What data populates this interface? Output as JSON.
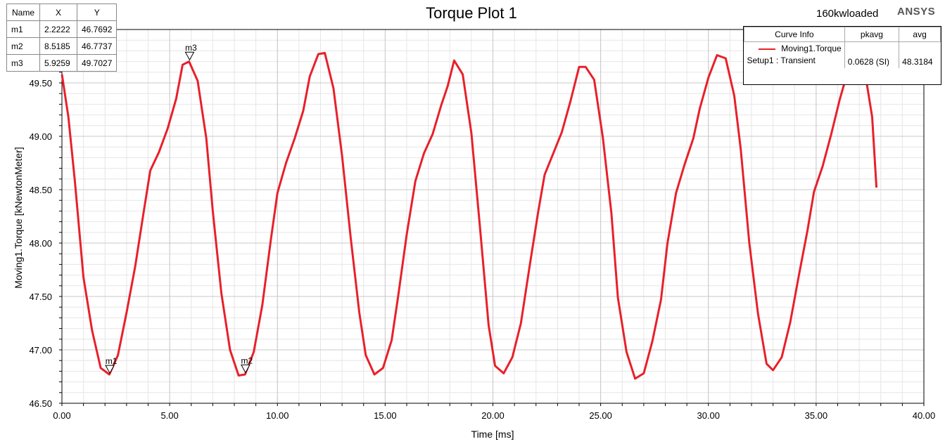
{
  "header": {
    "title": "Torque Plot 1",
    "subtitle": "160kwloaded",
    "brand": "ANSYS"
  },
  "marker_table": {
    "columns": [
      "Name",
      "X",
      "Y"
    ],
    "rows": [
      {
        "name": "m1",
        "x": "2.2222",
        "y": "46.7692"
      },
      {
        "name": "m2",
        "x": "8.5185",
        "y": "46.7737"
      },
      {
        "name": "m3",
        "x": "5.9259",
        "y": "49.7027"
      }
    ]
  },
  "legend": {
    "columns": [
      "Curve Info",
      "pkavg",
      "avg"
    ],
    "curve_name": "Moving1.Torque",
    "setup": "Setup1 : Transient",
    "pkavg": "0.0628 (SI)",
    "avg": "48.3184",
    "line_color": "#e8202a"
  },
  "chart_data": {
    "type": "line",
    "title": "Torque Plot 1",
    "xlabel": "Time [ms]",
    "ylabel": "Moving1.Torque [kNewtonMeter]",
    "xlim": [
      0,
      40
    ],
    "ylim": [
      46.5,
      50.0
    ],
    "xticks": [
      "0.00",
      "5.00",
      "10.00",
      "15.00",
      "20.00",
      "25.00",
      "30.00",
      "35.00",
      "40.00"
    ],
    "yticks": [
      "46.50",
      "47.00",
      "47.50",
      "48.00",
      "48.50",
      "49.00",
      "49.50"
    ],
    "grid": true,
    "legend_position": "top-right",
    "series": [
      {
        "name": "Moving1.Torque",
        "color": "#e8202a",
        "x": [
          0.0,
          0.3,
          0.6,
          1.0,
          1.4,
          1.8,
          2.2,
          2.6,
          3.0,
          3.4,
          3.8,
          4.1,
          4.5,
          4.9,
          5.3,
          5.6,
          5.9,
          6.3,
          6.7,
          7.0,
          7.4,
          7.8,
          8.2,
          8.5,
          8.9,
          9.3,
          9.7,
          10.0,
          10.4,
          10.8,
          11.2,
          11.5,
          11.9,
          12.2,
          12.6,
          13.0,
          13.4,
          13.8,
          14.1,
          14.5,
          14.9,
          15.3,
          15.6,
          16.0,
          16.4,
          16.8,
          17.2,
          17.6,
          17.9,
          18.2,
          18.6,
          19.0,
          19.4,
          19.8,
          20.1,
          20.5,
          20.9,
          21.3,
          21.7,
          22.1,
          22.4,
          22.8,
          23.2,
          23.6,
          24.0,
          24.3,
          24.7,
          25.1,
          25.5,
          25.8,
          26.2,
          26.6,
          27.0,
          27.4,
          27.8,
          28.1,
          28.5,
          28.9,
          29.3,
          29.6,
          30.0,
          30.4,
          30.8,
          31.2,
          31.5,
          31.9,
          32.3,
          32.7,
          33.0,
          33.4,
          33.8,
          34.2,
          34.6,
          34.9,
          35.3,
          35.7,
          36.1,
          36.4,
          36.8,
          37.2,
          37.6,
          37.8
        ],
        "y": [
          49.58,
          49.18,
          48.58,
          47.68,
          47.18,
          46.83,
          46.77,
          46.95,
          47.35,
          47.78,
          48.3,
          48.68,
          48.85,
          49.07,
          49.35,
          49.67,
          49.7,
          49.52,
          48.98,
          48.3,
          47.53,
          47.0,
          46.76,
          46.77,
          46.98,
          47.42,
          48.04,
          48.47,
          48.75,
          48.98,
          49.24,
          49.56,
          49.77,
          49.78,
          49.45,
          48.82,
          48.05,
          47.35,
          46.95,
          46.77,
          46.83,
          47.09,
          47.5,
          48.08,
          48.58,
          48.84,
          49.02,
          49.29,
          49.47,
          49.71,
          49.58,
          49.03,
          48.15,
          47.23,
          46.85,
          46.78,
          46.93,
          47.25,
          47.78,
          48.29,
          48.64,
          48.84,
          49.04,
          49.33,
          49.65,
          49.65,
          49.53,
          48.99,
          48.28,
          47.49,
          46.98,
          46.73,
          46.78,
          47.08,
          47.47,
          48.0,
          48.47,
          48.74,
          48.98,
          49.26,
          49.55,
          49.76,
          49.73,
          49.38,
          48.88,
          48.0,
          47.34,
          46.87,
          46.81,
          46.93,
          47.26,
          47.7,
          48.12,
          48.48,
          48.72,
          49.02,
          49.35,
          49.56,
          49.7,
          49.68,
          49.18,
          48.52
        ]
      }
    ],
    "markers": [
      {
        "name": "m1",
        "x": 2.2222,
        "y": 46.7692
      },
      {
        "name": "m2",
        "x": 8.5185,
        "y": 46.7737
      },
      {
        "name": "m3",
        "x": 5.9259,
        "y": 49.7027
      }
    ]
  }
}
